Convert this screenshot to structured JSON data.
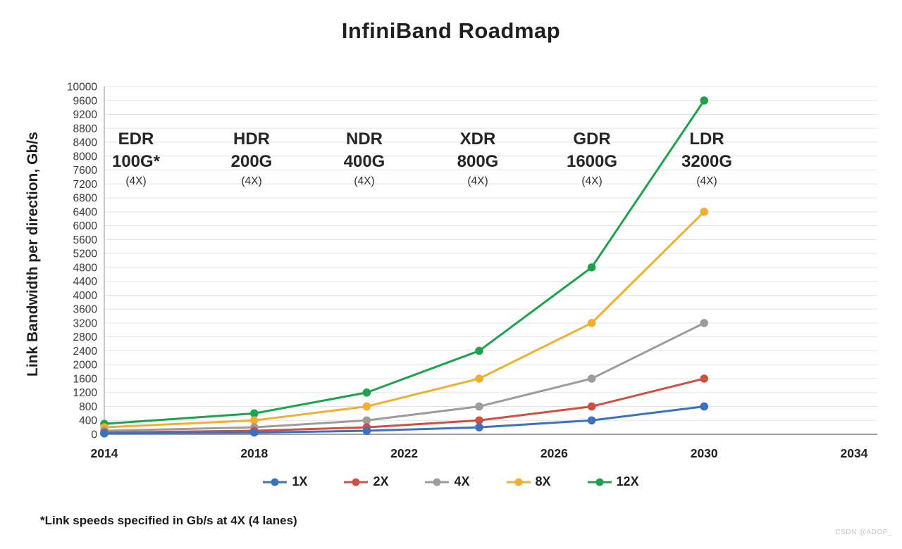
{
  "title": "InfiniBand Roadmap",
  "footnote": "*Link speeds specified in Gb/s at 4X (4 lanes)",
  "watermark": "CSDN @ADOP_",
  "chart_data": {
    "type": "line",
    "title": "InfiniBand Roadmap",
    "xlabel": "",
    "ylabel": "Link Bandwidth per direction, Gb/s",
    "x": [
      2014,
      2018,
      2021,
      2024,
      2027,
      2030
    ],
    "series": [
      {
        "name": "1X",
        "color": "#3B71C1",
        "values": [
          25,
          50,
          100,
          200,
          400,
          800
        ]
      },
      {
        "name": "2X",
        "color": "#CC5144",
        "values": [
          50,
          100,
          200,
          400,
          800,
          1600
        ]
      },
      {
        "name": "4X",
        "color": "#9C9C9C",
        "values": [
          100,
          200,
          400,
          800,
          1600,
          3200
        ]
      },
      {
        "name": "8X",
        "color": "#F0AF33",
        "values": [
          200,
          400,
          800,
          1600,
          3200,
          6400
        ]
      },
      {
        "name": "12X",
        "color": "#1FA24B",
        "values": [
          300,
          600,
          1200,
          2400,
          4800,
          9600
        ]
      }
    ],
    "xlim": [
      2014,
      2034
    ],
    "ylim": [
      0,
      10000
    ],
    "y_tick_step": 400,
    "x_ticks": [
      2014,
      2018,
      2022,
      2026,
      2030,
      2034
    ],
    "grid": "horizontal-only",
    "legend_position": "bottom",
    "annotations": [
      {
        "name": "EDR",
        "speed": "100G*",
        "lanes": "(4X)"
      },
      {
        "name": "HDR",
        "speed": "200G",
        "lanes": "(4X)"
      },
      {
        "name": "NDR",
        "speed": "400G",
        "lanes": "(4X)"
      },
      {
        "name": "XDR",
        "speed": "800G",
        "lanes": "(4X)"
      },
      {
        "name": "GDR",
        "speed": "1600G",
        "lanes": "(4X)"
      },
      {
        "name": "LDR",
        "speed": "3200G",
        "lanes": "(4X)"
      }
    ]
  }
}
